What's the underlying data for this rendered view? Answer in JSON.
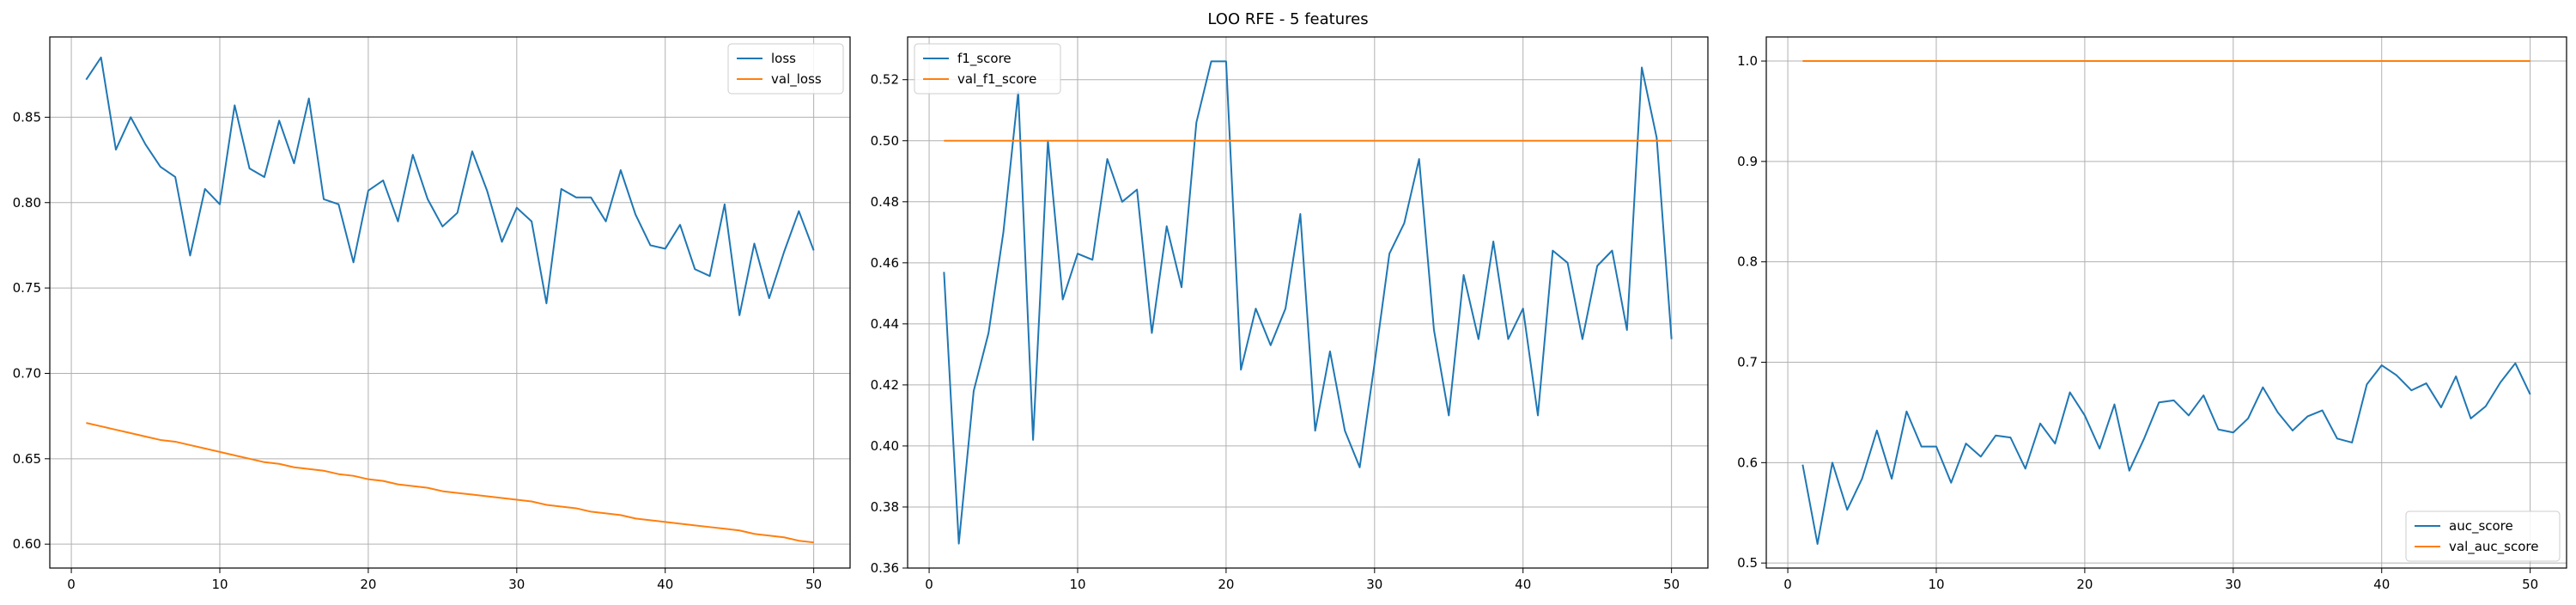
{
  "figure": {
    "title": "LOO RFE - 5 features"
  },
  "colors": {
    "series0": "#1f77b4",
    "series1": "#ff7f0e",
    "grid": "#b0b0b0",
    "axis": "#000000"
  },
  "chart_data": [
    {
      "type": "line",
      "title": "",
      "xlabel": "",
      "ylabel": "",
      "xlim": [
        -1.45,
        52.45
      ],
      "ylim": [
        0.586,
        0.897
      ],
      "xticks": [
        0,
        10,
        20,
        30,
        40,
        50
      ],
      "yticks": [
        0.6,
        0.65,
        0.7,
        0.75,
        0.8,
        0.85
      ],
      "ytick_labels": [
        "0.60",
        "0.65",
        "0.70",
        "0.75",
        "0.80",
        "0.85"
      ],
      "grid": true,
      "legend_loc": "upper right",
      "x": [
        1,
        2,
        3,
        4,
        5,
        6,
        7,
        8,
        9,
        10,
        11,
        12,
        13,
        14,
        15,
        16,
        17,
        18,
        19,
        20,
        21,
        22,
        23,
        24,
        25,
        26,
        27,
        28,
        29,
        30,
        31,
        32,
        33,
        34,
        35,
        36,
        37,
        38,
        39,
        40,
        41,
        42,
        43,
        44,
        45,
        46,
        47,
        48,
        49,
        50
      ],
      "series": [
        {
          "name": "loss",
          "values": [
            0.872,
            0.885,
            0.831,
            0.85,
            0.834,
            0.821,
            0.815,
            0.769,
            0.808,
            0.799,
            0.857,
            0.82,
            0.815,
            0.848,
            0.823,
            0.861,
            0.802,
            0.799,
            0.765,
            0.807,
            0.813,
            0.789,
            0.828,
            0.802,
            0.786,
            0.794,
            0.83,
            0.807,
            0.777,
            0.797,
            0.789,
            0.741,
            0.808,
            0.803,
            0.803,
            0.789,
            0.819,
            0.793,
            0.775,
            0.773,
            0.787,
            0.761,
            0.757,
            0.799,
            0.734,
            0.776,
            0.744,
            0.771,
            0.795,
            0.772
          ]
        },
        {
          "name": "val_loss",
          "values": [
            0.671,
            0.669,
            0.667,
            0.665,
            0.663,
            0.661,
            0.66,
            0.658,
            0.656,
            0.654,
            0.652,
            0.65,
            0.648,
            0.647,
            0.645,
            0.644,
            0.643,
            0.641,
            0.64,
            0.638,
            0.637,
            0.635,
            0.634,
            0.633,
            0.631,
            0.63,
            0.629,
            0.628,
            0.627,
            0.626,
            0.625,
            0.623,
            0.622,
            0.621,
            0.619,
            0.618,
            0.617,
            0.615,
            0.614,
            0.613,
            0.612,
            0.611,
            0.61,
            0.609,
            0.608,
            0.606,
            0.605,
            0.604,
            0.602,
            0.601
          ]
        }
      ]
    },
    {
      "type": "line",
      "title": "",
      "xlabel": "",
      "ylabel": "",
      "xlim": [
        -1.45,
        52.45
      ],
      "ylim": [
        0.36,
        0.534
      ],
      "xticks": [
        0,
        10,
        20,
        30,
        40,
        50
      ],
      "yticks": [
        0.36,
        0.38,
        0.4,
        0.42,
        0.44,
        0.46,
        0.48,
        0.5,
        0.52
      ],
      "ytick_labels": [
        "0.36",
        "0.38",
        "0.40",
        "0.42",
        "0.44",
        "0.46",
        "0.48",
        "0.50",
        "0.52"
      ],
      "grid": true,
      "legend_loc": "upper left",
      "x": [
        1,
        2,
        3,
        4,
        5,
        6,
        7,
        8,
        9,
        10,
        11,
        12,
        13,
        14,
        15,
        16,
        17,
        18,
        19,
        20,
        21,
        22,
        23,
        24,
        25,
        26,
        27,
        28,
        29,
        30,
        31,
        32,
        33,
        34,
        35,
        36,
        37,
        38,
        39,
        40,
        41,
        42,
        43,
        44,
        45,
        46,
        47,
        48,
        49,
        50
      ],
      "series": [
        {
          "name": "f1_score",
          "values": [
            0.457,
            0.368,
            0.418,
            0.437,
            0.47,
            0.516,
            0.402,
            0.5,
            0.448,
            0.463,
            0.461,
            0.494,
            0.48,
            0.484,
            0.437,
            0.472,
            0.452,
            0.506,
            0.526,
            0.526,
            0.425,
            0.445,
            0.433,
            0.445,
            0.476,
            0.405,
            0.431,
            0.405,
            0.393,
            0.427,
            0.463,
            0.473,
            0.494,
            0.438,
            0.41,
            0.456,
            0.435,
            0.467,
            0.435,
            0.445,
            0.41,
            0.464,
            0.46,
            0.435,
            0.459,
            0.464,
            0.438,
            0.524,
            0.501,
            0.435
          ]
        },
        {
          "name": "val_f1_score",
          "values": [
            0.5,
            0.5,
            0.5,
            0.5,
            0.5,
            0.5,
            0.5,
            0.5,
            0.5,
            0.5,
            0.5,
            0.5,
            0.5,
            0.5,
            0.5,
            0.5,
            0.5,
            0.5,
            0.5,
            0.5,
            0.5,
            0.5,
            0.5,
            0.5,
            0.5,
            0.5,
            0.5,
            0.5,
            0.5,
            0.5,
            0.5,
            0.5,
            0.5,
            0.5,
            0.5,
            0.5,
            0.5,
            0.5,
            0.5,
            0.5,
            0.5,
            0.5,
            0.5,
            0.5,
            0.5,
            0.5,
            0.5,
            0.5,
            0.5,
            0.5
          ]
        }
      ]
    },
    {
      "type": "line",
      "title": "",
      "xlabel": "",
      "ylabel": "",
      "xlim": [
        -1.45,
        52.45
      ],
      "ylim": [
        0.495,
        1.024
      ],
      "xticks": [
        0,
        10,
        20,
        30,
        40,
        50
      ],
      "yticks": [
        0.5,
        0.6,
        0.7,
        0.8,
        0.9,
        1.0
      ],
      "ytick_labels": [
        "0.5",
        "0.6",
        "0.7",
        "0.8",
        "0.9",
        "1.0"
      ],
      "grid": true,
      "legend_loc": "lower right",
      "x": [
        1,
        2,
        3,
        4,
        5,
        6,
        7,
        8,
        9,
        10,
        11,
        12,
        13,
        14,
        15,
        16,
        17,
        18,
        19,
        20,
        21,
        22,
        23,
        24,
        25,
        26,
        27,
        28,
        29,
        30,
        31,
        32,
        33,
        34,
        35,
        36,
        37,
        38,
        39,
        40,
        41,
        42,
        43,
        44,
        45,
        46,
        47,
        48,
        49,
        50
      ],
      "series": [
        {
          "name": "auc_score",
          "values": [
            0.598,
            0.519,
            0.6,
            0.553,
            0.584,
            0.632,
            0.584,
            0.651,
            0.616,
            0.616,
            0.58,
            0.619,
            0.606,
            0.627,
            0.625,
            0.594,
            0.639,
            0.619,
            0.67,
            0.647,
            0.614,
            0.658,
            0.592,
            0.624,
            0.66,
            0.662,
            0.647,
            0.667,
            0.633,
            0.63,
            0.644,
            0.675,
            0.65,
            0.632,
            0.646,
            0.652,
            0.624,
            0.62,
            0.678,
            0.697,
            0.687,
            0.672,
            0.679,
            0.655,
            0.686,
            0.644,
            0.656,
            0.68,
            0.699,
            0.668
          ]
        },
        {
          "name": "val_auc_score",
          "values": [
            1.0,
            1.0,
            1.0,
            1.0,
            1.0,
            1.0,
            1.0,
            1.0,
            1.0,
            1.0,
            1.0,
            1.0,
            1.0,
            1.0,
            1.0,
            1.0,
            1.0,
            1.0,
            1.0,
            1.0,
            1.0,
            1.0,
            1.0,
            1.0,
            1.0,
            1.0,
            1.0,
            1.0,
            1.0,
            1.0,
            1.0,
            1.0,
            1.0,
            1.0,
            1.0,
            1.0,
            1.0,
            1.0,
            1.0,
            1.0,
            1.0,
            1.0,
            1.0,
            1.0,
            1.0,
            1.0,
            1.0,
            1.0,
            1.0,
            1.0
          ]
        }
      ]
    }
  ]
}
